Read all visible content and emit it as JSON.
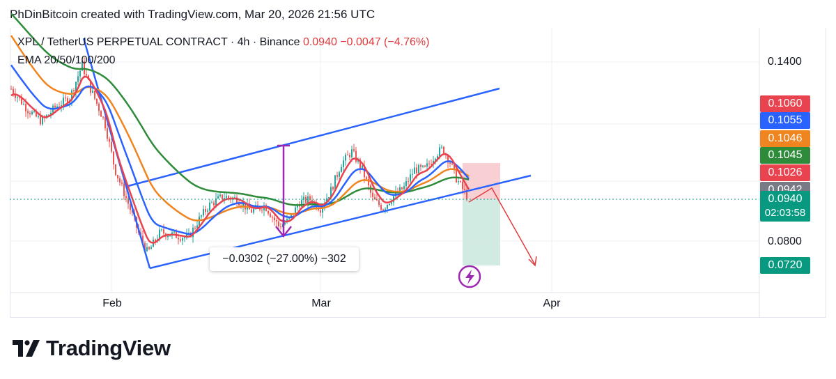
{
  "header": {
    "credit": "PhDinBitcoin created with TradingView.com, Mar 20, 2026 21:56 UTC"
  },
  "legend": {
    "symbol": "XPL / TetherUS PERPETUAL CONTRACT · 4h · Binance",
    "price": "0.0940",
    "change": "−0.0047 (−4.76%)",
    "indicator": "EMA 20/50/100/200"
  },
  "brand": {
    "name": "TradingView",
    "icon": "tradingview-logo-icon"
  },
  "measure": {
    "label": "−0.0302 (−27.00%) −302"
  },
  "price_tags": [
    {
      "value": "0.1060",
      "color": "#e8434e",
      "y": 137
    },
    {
      "value": "0.1055",
      "color": "#2962ff",
      "y": 161
    },
    {
      "value": "0.1046",
      "color": "#f0841e",
      "y": 187
    },
    {
      "value": "0.1045",
      "color": "#2e8b3a",
      "y": 211
    },
    {
      "value": "0.1026",
      "color": "#e8434e",
      "y": 236
    },
    {
      "value": "0.0942",
      "color": "#787b86",
      "y": 261
    }
  ],
  "current": {
    "price": "0.0940",
    "countdown": "02:03:58",
    "color": "#089981"
  },
  "target_tag": {
    "value": "0.0720",
    "color": "#089981"
  },
  "icons": {
    "flash": "lightning-icon"
  },
  "chart_data": {
    "type": "candlestick",
    "title": "XPL / TetherUS PERPETUAL CONTRACT · 4h · Binance",
    "timeframe": "4h",
    "exchange": "Binance",
    "y_ticks": [
      "0.1400",
      "0.0800"
    ],
    "x_ticks": [
      "Feb",
      "Mar",
      "Apr"
    ],
    "ylim": [
      0.066,
      0.152
    ],
    "last_price": 0.094,
    "ema": [
      {
        "name": "EMA 20",
        "color": "#e8434e",
        "last": 0.1026
      },
      {
        "name": "EMA 50",
        "color": "#2962ff",
        "last": 0.1055
      },
      {
        "name": "EMA 100",
        "color": "#f0841e",
        "last": 0.1046
      },
      {
        "name": "EMA 200",
        "color": "#2e8b3a",
        "last": 0.1045
      }
    ],
    "position_short": {
      "entry": 0.0942,
      "stop": 0.106,
      "target": 0.072
    },
    "measure_change": -0.0302,
    "measure_change_pct": -27.0,
    "measure_bars": -302
  }
}
